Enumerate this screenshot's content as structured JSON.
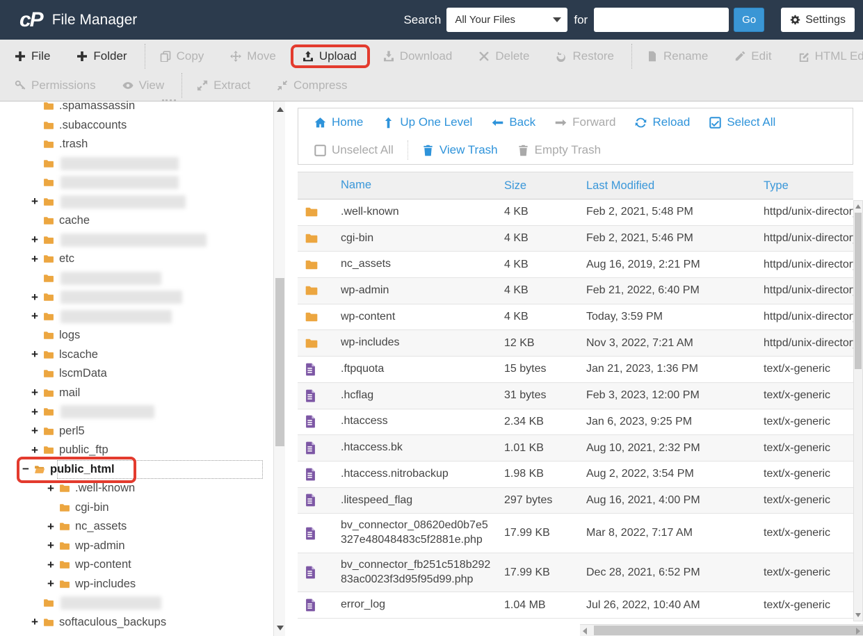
{
  "app": {
    "logo": "cP",
    "title": "File Manager"
  },
  "search": {
    "label": "Search",
    "scope": "All Your Files",
    "for_label": "for",
    "value": "",
    "go": "Go",
    "settings": "Settings"
  },
  "colors": {
    "header_bg": "#2c3b4d",
    "accent_blue": "#2e93da",
    "highlight_red": "#E33B2E",
    "folder_orange": "#ECA640",
    "file_purple": "#7D57A5"
  },
  "toolbar": {
    "rows": [
      [
        {
          "label": "File",
          "icon": "plus",
          "enabled": true
        },
        {
          "label": "Folder",
          "icon": "plus",
          "enabled": true,
          "sep_after": true
        },
        {
          "label": "Copy",
          "icon": "copy",
          "enabled": false
        },
        {
          "label": "Move",
          "icon": "move",
          "enabled": false
        },
        {
          "label": "Upload",
          "icon": "upload",
          "enabled": true,
          "highlighted": true
        },
        {
          "label": "Download",
          "icon": "download",
          "enabled": false
        },
        {
          "label": "Delete",
          "icon": "delete",
          "enabled": false
        },
        {
          "label": "Restore",
          "icon": "restore",
          "enabled": false,
          "sep_after": true
        },
        {
          "label": "Rename",
          "icon": "file",
          "enabled": false
        },
        {
          "label": "Edit",
          "icon": "pencil",
          "enabled": false
        },
        {
          "label": "HTML Editor",
          "icon": "editsq",
          "enabled": false
        }
      ],
      [
        {
          "label": "Permissions",
          "icon": "key",
          "enabled": false
        },
        {
          "label": "View",
          "icon": "eye",
          "enabled": false,
          "sep_after": true
        },
        {
          "label": "Extract",
          "icon": "extract",
          "enabled": false
        },
        {
          "label": "Compress",
          "icon": "compress",
          "enabled": false
        }
      ]
    ]
  },
  "nav": {
    "rows": [
      [
        {
          "label": "Home",
          "icon": "home",
          "enabled": true
        },
        {
          "label": "Up One Level",
          "icon": "arrowup",
          "enabled": true
        },
        {
          "label": "Back",
          "icon": "arrowleft",
          "enabled": true
        },
        {
          "label": "Forward",
          "icon": "arrowright",
          "enabled": false
        },
        {
          "label": "Reload",
          "icon": "reload",
          "enabled": true
        },
        {
          "label": "Select All",
          "icon": "checkon",
          "enabled": true
        }
      ],
      [
        {
          "label": "Unselect All",
          "icon": "checkoff",
          "enabled": false,
          "sep_after": true
        },
        {
          "label": "View Trash",
          "icon": "trash",
          "enabled": true
        },
        {
          "label": "Empty Trash",
          "icon": "trash",
          "enabled": false
        }
      ]
    ]
  },
  "sidebar": {
    "items": [
      {
        "label": ".spamassassin",
        "level": 1,
        "exp": null
      },
      {
        "label": ".subaccounts",
        "level": 1,
        "exp": null
      },
      {
        "label": ".trash",
        "level": 1,
        "exp": null
      },
      {
        "label": "",
        "redacted": true,
        "blur_width": 170,
        "level": 1,
        "exp": null
      },
      {
        "label": "",
        "redacted": true,
        "blur_width": 170,
        "level": 1,
        "exp": null
      },
      {
        "label": "",
        "redacted": true,
        "blur_width": 180,
        "level": 1,
        "exp": "+"
      },
      {
        "label": "cache",
        "level": 1,
        "exp": null
      },
      {
        "label": "",
        "redacted": true,
        "blur_width": 210,
        "level": 1,
        "exp": "+"
      },
      {
        "label": "etc",
        "level": 1,
        "exp": "+"
      },
      {
        "label": "",
        "redacted": true,
        "blur_width": 145,
        "level": 1,
        "exp": null
      },
      {
        "label": "",
        "redacted": true,
        "blur_width": 175,
        "level": 1,
        "exp": "+"
      },
      {
        "label": "",
        "redacted": true,
        "blur_width": 160,
        "level": 1,
        "exp": "+"
      },
      {
        "label": "logs",
        "level": 1,
        "exp": null
      },
      {
        "label": "lscache",
        "level": 1,
        "exp": "+"
      },
      {
        "label": "lscmData",
        "level": 1,
        "exp": null
      },
      {
        "label": "mail",
        "level": 1,
        "exp": "+"
      },
      {
        "label": "",
        "redacted": true,
        "blur_width": 135,
        "level": 1,
        "exp": "+"
      },
      {
        "label": "perl5",
        "level": 1,
        "exp": "+"
      },
      {
        "label": "public_ftp",
        "level": 1,
        "exp": "+"
      },
      {
        "label": "public_html",
        "level": 1,
        "exp": "-",
        "selected": true,
        "highlighted": true
      },
      {
        "label": ".well-known",
        "level": 2,
        "exp": "+"
      },
      {
        "label": "cgi-bin",
        "level": 2,
        "exp": null
      },
      {
        "label": "nc_assets",
        "level": 2,
        "exp": "+"
      },
      {
        "label": "wp-admin",
        "level": 2,
        "exp": "+"
      },
      {
        "label": "wp-content",
        "level": 2,
        "exp": "+"
      },
      {
        "label": "wp-includes",
        "level": 2,
        "exp": "+"
      },
      {
        "label": "",
        "redacted": true,
        "blur_width": 145,
        "level": 1,
        "exp": null
      },
      {
        "label": "softaculous_backups",
        "level": 1,
        "exp": "+"
      }
    ]
  },
  "files": {
    "columns": [
      "Name",
      "Size",
      "Last Modified",
      "Type"
    ],
    "rows": [
      {
        "kind": "folder",
        "name": ".well-known",
        "size": "4 KB",
        "modified": "Feb 2, 2021, 5:48 PM",
        "type": "httpd/unix-directory"
      },
      {
        "kind": "folder",
        "name": "cgi-bin",
        "size": "4 KB",
        "modified": "Feb 2, 2021, 5:46 PM",
        "type": "httpd/unix-directory"
      },
      {
        "kind": "folder",
        "name": "nc_assets",
        "size": "4 KB",
        "modified": "Aug 16, 2019, 2:21 PM",
        "type": "httpd/unix-directory"
      },
      {
        "kind": "folder",
        "name": "wp-admin",
        "size": "4 KB",
        "modified": "Feb 21, 2022, 6:40 PM",
        "type": "httpd/unix-directory"
      },
      {
        "kind": "folder",
        "name": "wp-content",
        "size": "4 KB",
        "modified": "Today, 3:59 PM",
        "type": "httpd/unix-directory"
      },
      {
        "kind": "folder",
        "name": "wp-includes",
        "size": "12 KB",
        "modified": "Nov 3, 2022, 7:21 AM",
        "type": "httpd/unix-directory"
      },
      {
        "kind": "file",
        "name": ".ftpquota",
        "size": "15 bytes",
        "modified": "Jan 21, 2023, 1:36 PM",
        "type": "text/x-generic"
      },
      {
        "kind": "file",
        "name": ".hcflag",
        "size": "31 bytes",
        "modified": "Feb 3, 2023, 12:00 PM",
        "type": "text/x-generic"
      },
      {
        "kind": "file",
        "name": ".htaccess",
        "size": "2.34 KB",
        "modified": "Jan 6, 2023, 9:25 PM",
        "type": "text/x-generic"
      },
      {
        "kind": "file",
        "name": ".htaccess.bk",
        "size": "1.01 KB",
        "modified": "Aug 10, 2021, 2:32 PM",
        "type": "text/x-generic"
      },
      {
        "kind": "file",
        "name": ".htaccess.nitrobackup",
        "size": "1.98 KB",
        "modified": "Aug 2, 2022, 3:54 PM",
        "type": "text/x-generic"
      },
      {
        "kind": "file",
        "name": ".litespeed_flag",
        "size": "297 bytes",
        "modified": "Aug 16, 2021, 4:00 PM",
        "type": "text/x-generic"
      },
      {
        "kind": "file",
        "name": "bv_connector_08620ed0b7e5327e48048483c5f2881e.php",
        "size": "17.99 KB",
        "modified": "Mar 8, 2022, 7:17 AM",
        "type": "text/x-generic"
      },
      {
        "kind": "file",
        "name": "bv_connector_fb251c518b29283ac0023f3d95f95d99.php",
        "size": "17.99 KB",
        "modified": "Dec 28, 2021, 6:52 PM",
        "type": "text/x-generic"
      },
      {
        "kind": "file",
        "name": "error_log",
        "size": "1.04 MB",
        "modified": "Jul 26, 2022, 10:40 AM",
        "type": "text/x-generic"
      }
    ]
  }
}
